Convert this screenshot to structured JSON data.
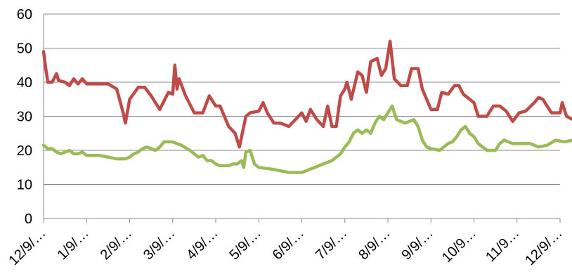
{
  "chart_data": {
    "type": "line",
    "title": "",
    "xlabel": "",
    "ylabel": "",
    "ylim": [
      0,
      60
    ],
    "yticks": [
      "0",
      "10",
      "20",
      "30",
      "40",
      "50",
      "60"
    ],
    "xtick_labels": [
      "12/9/…",
      "1/9/…",
      "2/9/…",
      "3/9/…",
      "4/9/…",
      "5/9/…",
      "6/9/…",
      "7/9/…",
      "8/9/…",
      "9/9/…",
      "10/9…",
      "11/9…",
      "12/9/…"
    ],
    "grid": "horizontal",
    "legend": "none",
    "x_period_units": "months from first tick",
    "series": [
      {
        "color": "#be4b48",
        "points": [
          [
            0.0,
            49
          ],
          [
            0.05,
            44
          ],
          [
            0.1,
            40
          ],
          [
            0.2,
            40
          ],
          [
            0.3,
            42.5
          ],
          [
            0.35,
            40.5
          ],
          [
            0.5,
            40
          ],
          [
            0.6,
            39
          ],
          [
            0.7,
            41
          ],
          [
            0.8,
            39.5
          ],
          [
            0.9,
            41
          ],
          [
            1.0,
            39.5
          ],
          [
            1.5,
            39.5
          ],
          [
            1.7,
            38
          ],
          [
            1.85,
            31
          ],
          [
            1.9,
            28
          ],
          [
            2.0,
            35
          ],
          [
            2.2,
            38.5
          ],
          [
            2.35,
            38.5
          ],
          [
            2.5,
            36
          ],
          [
            2.7,
            32
          ],
          [
            2.9,
            37
          ],
          [
            3.0,
            36.5
          ],
          [
            3.05,
            45
          ],
          [
            3.1,
            38
          ],
          [
            3.15,
            41
          ],
          [
            3.3,
            36
          ],
          [
            3.5,
            31
          ],
          [
            3.7,
            31
          ],
          [
            3.85,
            36
          ],
          [
            4.0,
            33
          ],
          [
            4.1,
            33
          ],
          [
            4.3,
            27
          ],
          [
            4.45,
            25
          ],
          [
            4.55,
            21
          ],
          [
            4.7,
            30
          ],
          [
            4.8,
            31
          ],
          [
            5.0,
            31.5
          ],
          [
            5.1,
            34
          ],
          [
            5.2,
            31
          ],
          [
            5.35,
            28
          ],
          [
            5.5,
            28
          ],
          [
            5.7,
            27
          ],
          [
            5.85,
            29
          ],
          [
            6.0,
            31
          ],
          [
            6.1,
            28.5
          ],
          [
            6.2,
            32
          ],
          [
            6.35,
            29
          ],
          [
            6.5,
            27
          ],
          [
            6.6,
            33
          ],
          [
            6.7,
            27
          ],
          [
            6.8,
            27
          ],
          [
            6.9,
            36
          ],
          [
            7.0,
            38
          ],
          [
            7.05,
            40
          ],
          [
            7.15,
            35
          ],
          [
            7.3,
            43
          ],
          [
            7.4,
            42
          ],
          [
            7.5,
            37
          ],
          [
            7.6,
            46
          ],
          [
            7.75,
            47
          ],
          [
            7.85,
            42
          ],
          [
            7.95,
            44
          ],
          [
            8.05,
            52
          ],
          [
            8.15,
            41
          ],
          [
            8.3,
            39
          ],
          [
            8.45,
            39
          ],
          [
            8.55,
            44
          ],
          [
            8.7,
            44
          ],
          [
            8.8,
            38
          ],
          [
            9.0,
            32
          ],
          [
            9.15,
            32
          ],
          [
            9.25,
            37
          ],
          [
            9.4,
            36.5
          ],
          [
            9.55,
            39
          ],
          [
            9.65,
            39
          ],
          [
            9.75,
            36.5
          ],
          [
            9.9,
            35
          ],
          [
            10.0,
            34
          ],
          [
            10.1,
            30
          ],
          [
            10.3,
            30
          ],
          [
            10.45,
            33
          ],
          [
            10.6,
            33
          ],
          [
            10.75,
            31.5
          ],
          [
            10.9,
            28.5
          ],
          [
            11.05,
            31
          ],
          [
            11.2,
            31.5
          ],
          [
            11.4,
            34
          ],
          [
            11.5,
            35.5
          ],
          [
            11.6,
            35
          ],
          [
            11.7,
            33
          ],
          [
            11.8,
            31
          ],
          [
            11.9,
            31
          ],
          [
            12.0,
            31
          ],
          [
            12.05,
            34
          ],
          [
            12.15,
            30
          ],
          [
            12.3,
            29
          ],
          [
            12.4,
            28
          ],
          [
            12.5,
            29.5
          ],
          [
            12.6,
            28
          ],
          [
            12.75,
            27
          ],
          [
            12.9,
            27
          ],
          [
            13.0,
            26
          ],
          [
            13.1,
            28
          ],
          [
            13.2,
            25
          ],
          [
            13.35,
            27
          ],
          [
            13.45,
            26
          ],
          [
            13.6,
            25
          ],
          [
            13.7,
            24
          ],
          [
            13.8,
            22.5
          ],
          [
            14.0,
            23.5
          ],
          [
            14.1,
            23
          ],
          [
            14.2,
            23
          ],
          [
            14.3,
            24
          ],
          [
            14.4,
            23
          ],
          [
            14.5,
            23.5
          ],
          [
            14.6,
            22.5
          ],
          [
            14.7,
            23
          ],
          [
            14.8,
            22.5
          ],
          [
            14.9,
            23
          ],
          [
            15.0,
            24
          ],
          [
            15.2,
            25
          ],
          [
            15.35,
            24.5
          ],
          [
            15.5,
            24.5
          ],
          [
            15.55,
            29
          ],
          [
            15.65,
            25
          ],
          [
            15.75,
            27.5
          ],
          [
            15.85,
            24
          ],
          [
            15.95,
            26.5
          ],
          [
            16.05,
            22.5
          ],
          [
            16.15,
            26
          ],
          [
            16.3,
            24
          ],
          [
            16.4,
            25
          ],
          [
            16.5,
            23
          ],
          [
            16.6,
            25
          ],
          [
            16.7,
            24
          ],
          [
            16.8,
            25
          ],
          [
            16.9,
            28
          ],
          [
            16.95,
            23
          ],
          [
            17.05,
            27.5
          ],
          [
            17.15,
            25
          ],
          [
            17.2,
            24
          ]
        ]
      },
      {
        "color": "#9bbb59",
        "points": [
          [
            0.0,
            21.5
          ],
          [
            0.1,
            20.5
          ],
          [
            0.2,
            20.5
          ],
          [
            0.3,
            19.5
          ],
          [
            0.4,
            19
          ],
          [
            0.5,
            19.5
          ],
          [
            0.6,
            20
          ],
          [
            0.7,
            19
          ],
          [
            0.8,
            19
          ],
          [
            0.9,
            19.5
          ],
          [
            1.0,
            18.5
          ],
          [
            1.3,
            18.5
          ],
          [
            1.5,
            18
          ],
          [
            1.7,
            17.5
          ],
          [
            1.9,
            17.5
          ],
          [
            2.0,
            18
          ],
          [
            2.1,
            19
          ],
          [
            2.2,
            19.5
          ],
          [
            2.3,
            20.5
          ],
          [
            2.4,
            21
          ],
          [
            2.5,
            20.5
          ],
          [
            2.6,
            20
          ],
          [
            2.7,
            21
          ],
          [
            2.8,
            22.5
          ],
          [
            3.0,
            22.5
          ],
          [
            3.2,
            21.5
          ],
          [
            3.4,
            20
          ],
          [
            3.5,
            19
          ],
          [
            3.6,
            18
          ],
          [
            3.7,
            18.5
          ],
          [
            3.8,
            17
          ],
          [
            3.9,
            17
          ],
          [
            4.0,
            16
          ],
          [
            4.1,
            15.5
          ],
          [
            4.3,
            15.5
          ],
          [
            4.4,
            16
          ],
          [
            4.5,
            16
          ],
          [
            4.6,
            17
          ],
          [
            4.65,
            15
          ],
          [
            4.7,
            19.5
          ],
          [
            4.8,
            20
          ],
          [
            4.9,
            16
          ],
          [
            5.0,
            15
          ],
          [
            5.3,
            14.5
          ],
          [
            5.5,
            14
          ],
          [
            5.7,
            13.5
          ],
          [
            6.0,
            13.5
          ],
          [
            6.2,
            14.5
          ],
          [
            6.3,
            15
          ],
          [
            6.5,
            16
          ],
          [
            6.6,
            16.5
          ],
          [
            6.7,
            17
          ],
          [
            6.9,
            19
          ],
          [
            7.0,
            21
          ],
          [
            7.1,
            22.5
          ],
          [
            7.2,
            25
          ],
          [
            7.3,
            26
          ],
          [
            7.4,
            25
          ],
          [
            7.5,
            26
          ],
          [
            7.6,
            25
          ],
          [
            7.7,
            28
          ],
          [
            7.8,
            30
          ],
          [
            7.9,
            29
          ],
          [
            8.0,
            31
          ],
          [
            8.1,
            33
          ],
          [
            8.2,
            29
          ],
          [
            8.4,
            28
          ],
          [
            8.6,
            29
          ],
          [
            8.7,
            27
          ],
          [
            8.8,
            23
          ],
          [
            8.9,
            21
          ],
          [
            9.0,
            20.5
          ],
          [
            9.2,
            20
          ],
          [
            9.3,
            21
          ],
          [
            9.4,
            22
          ],
          [
            9.5,
            22.5
          ],
          [
            9.6,
            24
          ],
          [
            9.7,
            26
          ],
          [
            9.8,
            27
          ],
          [
            9.9,
            25
          ],
          [
            10.0,
            24
          ],
          [
            10.1,
            22
          ],
          [
            10.2,
            21
          ],
          [
            10.3,
            20
          ],
          [
            10.5,
            20
          ],
          [
            10.6,
            22
          ],
          [
            10.7,
            23
          ],
          [
            10.9,
            22
          ],
          [
            11.1,
            22
          ],
          [
            11.3,
            22
          ],
          [
            11.5,
            21
          ],
          [
            11.7,
            21.5
          ],
          [
            11.9,
            23
          ],
          [
            12.1,
            22.5
          ],
          [
            12.3,
            23
          ],
          [
            12.5,
            22
          ],
          [
            12.7,
            21
          ],
          [
            12.9,
            21
          ],
          [
            13.1,
            20.5
          ],
          [
            13.3,
            21
          ],
          [
            13.5,
            21.5
          ],
          [
            13.7,
            22.5
          ],
          [
            13.9,
            22.5
          ],
          [
            14.1,
            22.5
          ],
          [
            14.2,
            21
          ],
          [
            14.4,
            21
          ],
          [
            14.6,
            20
          ],
          [
            14.8,
            20
          ],
          [
            15.0,
            20
          ],
          [
            15.2,
            20
          ],
          [
            15.3,
            20
          ],
          [
            15.35,
            14.5
          ],
          [
            15.5,
            14.5
          ],
          [
            15.7,
            14.5
          ],
          [
            15.9,
            14.5
          ],
          [
            16.1,
            14.5
          ],
          [
            16.3,
            14.5
          ],
          [
            16.4,
            13.5
          ],
          [
            16.5,
            12.5
          ],
          [
            16.6,
            13.5
          ],
          [
            16.7,
            14
          ],
          [
            16.8,
            14.5
          ],
          [
            17.0,
            14.5
          ],
          [
            17.2,
            14.5
          ]
        ]
      }
    ]
  }
}
